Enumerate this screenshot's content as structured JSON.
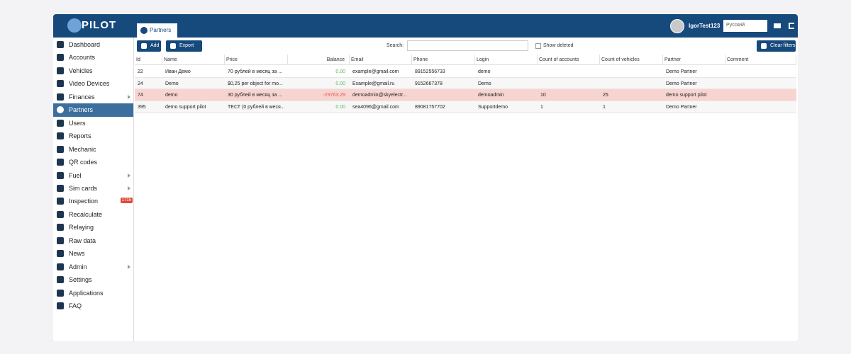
{
  "header": {
    "logo": "PILOT",
    "tab": "Partners",
    "user": "IgorTest123",
    "language": "Русский"
  },
  "sidebar": {
    "items": [
      {
        "label": "Dashboard"
      },
      {
        "label": "Accounts"
      },
      {
        "label": "Vehicles"
      },
      {
        "label": "Video Devices"
      },
      {
        "label": "Finances",
        "submenu": true
      },
      {
        "label": "Partners",
        "active": true
      },
      {
        "label": "Users"
      },
      {
        "label": "Reports"
      },
      {
        "label": "Mechanic"
      },
      {
        "label": "QR codes"
      },
      {
        "label": "Fuel",
        "submenu": true
      },
      {
        "label": "Sim cards",
        "submenu": true
      },
      {
        "label": "Inspection",
        "badge": "1715"
      },
      {
        "label": "Recalculate"
      },
      {
        "label": "Relaying"
      },
      {
        "label": "Raw data"
      },
      {
        "label": "News"
      },
      {
        "label": "Admin",
        "submenu": true
      },
      {
        "label": "Settings"
      },
      {
        "label": "Applications"
      },
      {
        "label": "FAQ"
      }
    ]
  },
  "toolbar": {
    "add": "Add",
    "export": "Export",
    "search_label": "Search:",
    "show_deleted": "Show deleted",
    "clear_filters": "Clear filters"
  },
  "table": {
    "columns": [
      "Id",
      "Name",
      "Price",
      "Balance",
      "Email",
      "Phone",
      "Login",
      "Count of accounts",
      "Count of vehicles",
      "Partner",
      "Comment"
    ],
    "rows": [
      {
        "cells": [
          "22",
          "Иван Демо",
          "70 рублей в месяц за ...",
          "0.00",
          "example@gmail.com",
          "89152556733",
          "demo",
          "",
          "",
          "Demo Partner",
          ""
        ]
      },
      {
        "cells": [
          "24",
          "Demo",
          "$0,25 per object for mo...",
          "0.00",
          "Example@gmail.ru",
          "9152667378",
          "Demo",
          "",
          "",
          "Demo Partner",
          ""
        ]
      },
      {
        "cells": [
          "74",
          "demo",
          "30 рублей в месяц за ...",
          "-29763.29",
          "demoadmin@skyelectr...",
          "",
          "demoadmin",
          "10",
          "25",
          "demo support pilot",
          ""
        ],
        "highlight": true
      },
      {
        "cells": [
          "395",
          "demo support pilot",
          "ТЕСТ (0 рублей в меся...",
          "0.00",
          "sea4096@gmail.com",
          "89081757702",
          "Supportdemo",
          "1",
          "1",
          "Demo Partner",
          ""
        ]
      }
    ]
  }
}
